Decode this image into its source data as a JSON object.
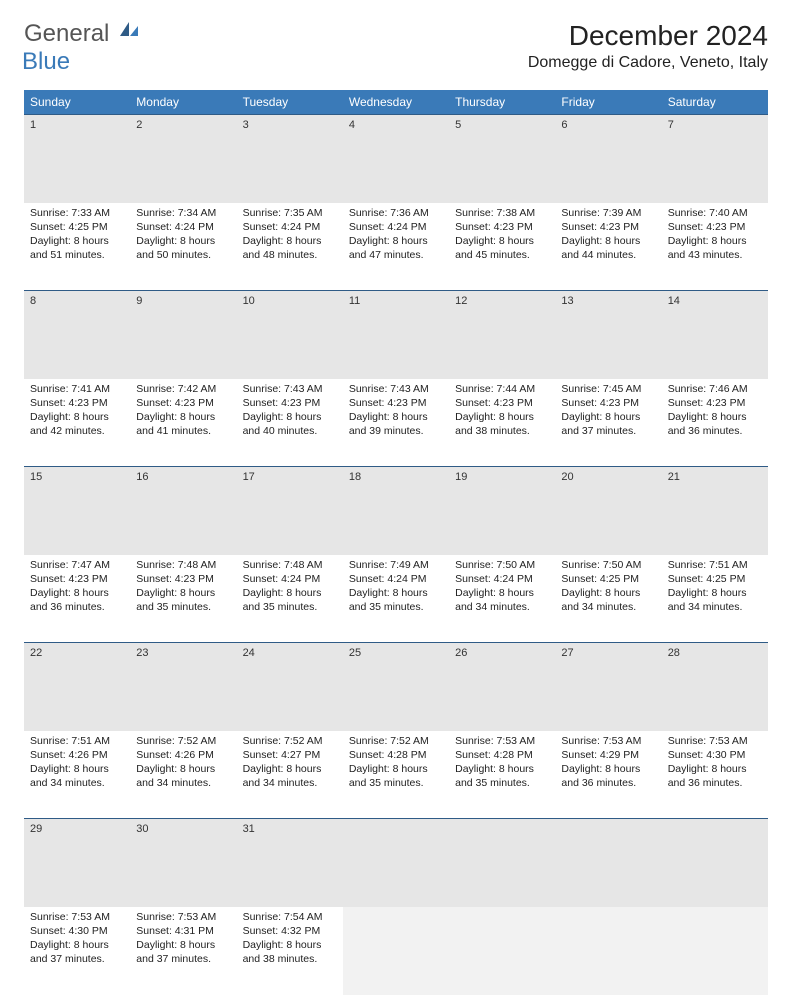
{
  "logo": {
    "word1": "General",
    "word2": "Blue"
  },
  "title": "December 2024",
  "location": "Domegge di Cadore, Veneto, Italy",
  "colors": {
    "header_bg": "#3a7ab8",
    "header_text": "#ffffff",
    "daynum_bg": "#e6e6e6",
    "row_border": "#2f5b86",
    "logo_gray": "#555555",
    "logo_blue": "#3a7ab8"
  },
  "day_headers": [
    "Sunday",
    "Monday",
    "Tuesday",
    "Wednesday",
    "Thursday",
    "Friday",
    "Saturday"
  ],
  "weeks": [
    [
      {
        "n": "1",
        "sr": "7:33 AM",
        "ss": "4:25 PM",
        "dl": "8 hours and 51 minutes."
      },
      {
        "n": "2",
        "sr": "7:34 AM",
        "ss": "4:24 PM",
        "dl": "8 hours and 50 minutes."
      },
      {
        "n": "3",
        "sr": "7:35 AM",
        "ss": "4:24 PM",
        "dl": "8 hours and 48 minutes."
      },
      {
        "n": "4",
        "sr": "7:36 AM",
        "ss": "4:24 PM",
        "dl": "8 hours and 47 minutes."
      },
      {
        "n": "5",
        "sr": "7:38 AM",
        "ss": "4:23 PM",
        "dl": "8 hours and 45 minutes."
      },
      {
        "n": "6",
        "sr": "7:39 AM",
        "ss": "4:23 PM",
        "dl": "8 hours and 44 minutes."
      },
      {
        "n": "7",
        "sr": "7:40 AM",
        "ss": "4:23 PM",
        "dl": "8 hours and 43 minutes."
      }
    ],
    [
      {
        "n": "8",
        "sr": "7:41 AM",
        "ss": "4:23 PM",
        "dl": "8 hours and 42 minutes."
      },
      {
        "n": "9",
        "sr": "7:42 AM",
        "ss": "4:23 PM",
        "dl": "8 hours and 41 minutes."
      },
      {
        "n": "10",
        "sr": "7:43 AM",
        "ss": "4:23 PM",
        "dl": "8 hours and 40 minutes."
      },
      {
        "n": "11",
        "sr": "7:43 AM",
        "ss": "4:23 PM",
        "dl": "8 hours and 39 minutes."
      },
      {
        "n": "12",
        "sr": "7:44 AM",
        "ss": "4:23 PM",
        "dl": "8 hours and 38 minutes."
      },
      {
        "n": "13",
        "sr": "7:45 AM",
        "ss": "4:23 PM",
        "dl": "8 hours and 37 minutes."
      },
      {
        "n": "14",
        "sr": "7:46 AM",
        "ss": "4:23 PM",
        "dl": "8 hours and 36 minutes."
      }
    ],
    [
      {
        "n": "15",
        "sr": "7:47 AM",
        "ss": "4:23 PM",
        "dl": "8 hours and 36 minutes."
      },
      {
        "n": "16",
        "sr": "7:48 AM",
        "ss": "4:23 PM",
        "dl": "8 hours and 35 minutes."
      },
      {
        "n": "17",
        "sr": "7:48 AM",
        "ss": "4:24 PM",
        "dl": "8 hours and 35 minutes."
      },
      {
        "n": "18",
        "sr": "7:49 AM",
        "ss": "4:24 PM",
        "dl": "8 hours and 35 minutes."
      },
      {
        "n": "19",
        "sr": "7:50 AM",
        "ss": "4:24 PM",
        "dl": "8 hours and 34 minutes."
      },
      {
        "n": "20",
        "sr": "7:50 AM",
        "ss": "4:25 PM",
        "dl": "8 hours and 34 minutes."
      },
      {
        "n": "21",
        "sr": "7:51 AM",
        "ss": "4:25 PM",
        "dl": "8 hours and 34 minutes."
      }
    ],
    [
      {
        "n": "22",
        "sr": "7:51 AM",
        "ss": "4:26 PM",
        "dl": "8 hours and 34 minutes."
      },
      {
        "n": "23",
        "sr": "7:52 AM",
        "ss": "4:26 PM",
        "dl": "8 hours and 34 minutes."
      },
      {
        "n": "24",
        "sr": "7:52 AM",
        "ss": "4:27 PM",
        "dl": "8 hours and 34 minutes."
      },
      {
        "n": "25",
        "sr": "7:52 AM",
        "ss": "4:28 PM",
        "dl": "8 hours and 35 minutes."
      },
      {
        "n": "26",
        "sr": "7:53 AM",
        "ss": "4:28 PM",
        "dl": "8 hours and 35 minutes."
      },
      {
        "n": "27",
        "sr": "7:53 AM",
        "ss": "4:29 PM",
        "dl": "8 hours and 36 minutes."
      },
      {
        "n": "28",
        "sr": "7:53 AM",
        "ss": "4:30 PM",
        "dl": "8 hours and 36 minutes."
      }
    ],
    [
      {
        "n": "29",
        "sr": "7:53 AM",
        "ss": "4:30 PM",
        "dl": "8 hours and 37 minutes."
      },
      {
        "n": "30",
        "sr": "7:53 AM",
        "ss": "4:31 PM",
        "dl": "8 hours and 37 minutes."
      },
      {
        "n": "31",
        "sr": "7:54 AM",
        "ss": "4:32 PM",
        "dl": "8 hours and 38 minutes."
      },
      null,
      null,
      null,
      null
    ]
  ],
  "labels": {
    "sunrise": "Sunrise:",
    "sunset": "Sunset:",
    "daylight": "Daylight:"
  }
}
